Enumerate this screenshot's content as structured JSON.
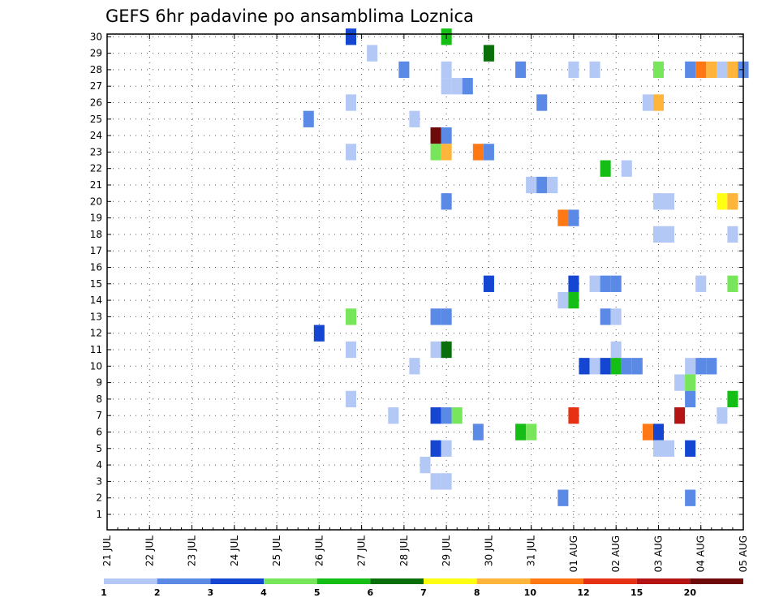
{
  "chart_data": {
    "type": "heatmap",
    "title": "GEFS 6hr padavine po ansamblima Loznica",
    "xlabel": "",
    "ylabel": "",
    "x_tick_labels": [
      "21 JUL",
      "22 JUL",
      "23 JUL",
      "24 JUL",
      "25 JUL",
      "26 JUL",
      "27 JUL",
      "28 JUL",
      "29 JUL",
      "30 JUL",
      "31 JUL",
      "01 AUG",
      "02 AUG",
      "03 AUG",
      "04 AUG",
      "05 AUG"
    ],
    "y_tick_labels": [
      "1",
      "2",
      "3",
      "4",
      "5",
      "6",
      "7",
      "8",
      "9",
      "10",
      "11",
      "12",
      "13",
      "14",
      "15",
      "16",
      "17",
      "18",
      "19",
      "20",
      "21",
      "22",
      "23",
      "24",
      "25",
      "26",
      "27",
      "28",
      "29",
      "30"
    ],
    "x_unit": "6-hour step from 21 JUL 00Z",
    "xlim": [
      0,
      60
    ],
    "ylim": [
      0.5,
      30.5
    ],
    "grid": true,
    "colorbar": {
      "labels": [
        "1",
        "2",
        "3",
        "4",
        "5",
        "6",
        "7",
        "8",
        "10",
        "12",
        "15",
        "20"
      ],
      "colors": [
        "#b4c8f5",
        "#5a8ae6",
        "#1446d2",
        "#78e65a",
        "#14be14",
        "#0a6e0a",
        "#ffff14",
        "#ffb43c",
        "#ff7814",
        "#e63214",
        "#b41414",
        "#6e0a0a"
      ]
    },
    "cells": [
      {
        "member": 30,
        "step": 23,
        "bin": 3
      },
      {
        "member": 30,
        "step": 32,
        "bin": 5
      },
      {
        "member": 29,
        "step": 25,
        "bin": 1
      },
      {
        "member": 29,
        "step": 36,
        "bin": 6
      },
      {
        "member": 28,
        "step": 28,
        "bin": 2
      },
      {
        "member": 28,
        "step": 32,
        "bin": 1
      },
      {
        "member": 28,
        "step": 39,
        "bin": 2
      },
      {
        "member": 28,
        "step": 44,
        "bin": 1
      },
      {
        "member": 28,
        "step": 46,
        "bin": 1
      },
      {
        "member": 28,
        "step": 52,
        "bin": 4
      },
      {
        "member": 28,
        "step": 55,
        "bin": 2
      },
      {
        "member": 28,
        "step": 56,
        "bin": 9
      },
      {
        "member": 28,
        "step": 57,
        "bin": 8
      },
      {
        "member": 28,
        "step": 58,
        "bin": 1
      },
      {
        "member": 28,
        "step": 59,
        "bin": 8
      },
      {
        "member": 28,
        "step": 60,
        "bin": 2
      },
      {
        "member": 27,
        "step": 32,
        "bin": 1
      },
      {
        "member": 27,
        "step": 33,
        "bin": 1
      },
      {
        "member": 27,
        "step": 34,
        "bin": 2
      },
      {
        "member": 26,
        "step": 23,
        "bin": 1
      },
      {
        "member": 26,
        "step": 41,
        "bin": 2
      },
      {
        "member": 26,
        "step": 51,
        "bin": 1
      },
      {
        "member": 26,
        "step": 52,
        "bin": 8
      },
      {
        "member": 25,
        "step": 19,
        "bin": 2
      },
      {
        "member": 25,
        "step": 29,
        "bin": 1
      },
      {
        "member": 24,
        "step": 31,
        "bin": 12
      },
      {
        "member": 24,
        "step": 32,
        "bin": 2
      },
      {
        "member": 23,
        "step": 23,
        "bin": 1
      },
      {
        "member": 23,
        "step": 31,
        "bin": 4
      },
      {
        "member": 23,
        "step": 32,
        "bin": 8
      },
      {
        "member": 23,
        "step": 35,
        "bin": 9
      },
      {
        "member": 23,
        "step": 36,
        "bin": 2
      },
      {
        "member": 22,
        "step": 47,
        "bin": 5
      },
      {
        "member": 22,
        "step": 49,
        "bin": 1
      },
      {
        "member": 21,
        "step": 40,
        "bin": 1
      },
      {
        "member": 21,
        "step": 41,
        "bin": 2
      },
      {
        "member": 21,
        "step": 42,
        "bin": 1
      },
      {
        "member": 20,
        "step": 32,
        "bin": 2
      },
      {
        "member": 20,
        "step": 52,
        "bin": 1
      },
      {
        "member": 20,
        "step": 53,
        "bin": 1
      },
      {
        "member": 20,
        "step": 58,
        "bin": 7
      },
      {
        "member": 20,
        "step": 59,
        "bin": 8
      },
      {
        "member": 19,
        "step": 43,
        "bin": 9
      },
      {
        "member": 19,
        "step": 44,
        "bin": 2
      },
      {
        "member": 18,
        "step": 52,
        "bin": 1
      },
      {
        "member": 18,
        "step": 53,
        "bin": 1
      },
      {
        "member": 18,
        "step": 59,
        "bin": 1
      },
      {
        "member": 15,
        "step": 36,
        "bin": 3
      },
      {
        "member": 15,
        "step": 44,
        "bin": 3
      },
      {
        "member": 15,
        "step": 46,
        "bin": 1
      },
      {
        "member": 15,
        "step": 47,
        "bin": 2
      },
      {
        "member": 15,
        "step": 48,
        "bin": 2
      },
      {
        "member": 15,
        "step": 56,
        "bin": 1
      },
      {
        "member": 15,
        "step": 59,
        "bin": 4
      },
      {
        "member": 14,
        "step": 43,
        "bin": 1
      },
      {
        "member": 14,
        "step": 44,
        "bin": 5
      },
      {
        "member": 13,
        "step": 23,
        "bin": 4
      },
      {
        "member": 13,
        "step": 31,
        "bin": 2
      },
      {
        "member": 13,
        "step": 32,
        "bin": 2
      },
      {
        "member": 13,
        "step": 47,
        "bin": 2
      },
      {
        "member": 13,
        "step": 48,
        "bin": 1
      },
      {
        "member": 12,
        "step": 20,
        "bin": 3
      },
      {
        "member": 11,
        "step": 23,
        "bin": 1
      },
      {
        "member": 11,
        "step": 31,
        "bin": 1
      },
      {
        "member": 11,
        "step": 32,
        "bin": 6
      },
      {
        "member": 11,
        "step": 48,
        "bin": 1
      },
      {
        "member": 10,
        "step": 29,
        "bin": 1
      },
      {
        "member": 10,
        "step": 45,
        "bin": 3
      },
      {
        "member": 10,
        "step": 46,
        "bin": 1
      },
      {
        "member": 10,
        "step": 47,
        "bin": 3
      },
      {
        "member": 10,
        "step": 48,
        "bin": 5
      },
      {
        "member": 10,
        "step": 49,
        "bin": 2
      },
      {
        "member": 10,
        "step": 50,
        "bin": 2
      },
      {
        "member": 10,
        "step": 55,
        "bin": 1
      },
      {
        "member": 10,
        "step": 56,
        "bin": 2
      },
      {
        "member": 10,
        "step": 57,
        "bin": 2
      },
      {
        "member": 9,
        "step": 54,
        "bin": 1
      },
      {
        "member": 9,
        "step": 55,
        "bin": 4
      },
      {
        "member": 8,
        "step": 23,
        "bin": 1
      },
      {
        "member": 8,
        "step": 55,
        "bin": 2
      },
      {
        "member": 8,
        "step": 59,
        "bin": 5
      },
      {
        "member": 7,
        "step": 27,
        "bin": 1
      },
      {
        "member": 7,
        "step": 31,
        "bin": 3
      },
      {
        "member": 7,
        "step": 32,
        "bin": 2
      },
      {
        "member": 7,
        "step": 33,
        "bin": 4
      },
      {
        "member": 7,
        "step": 44,
        "bin": 10
      },
      {
        "member": 7,
        "step": 54,
        "bin": 11
      },
      {
        "member": 7,
        "step": 58,
        "bin": 1
      },
      {
        "member": 6,
        "step": 35,
        "bin": 2
      },
      {
        "member": 6,
        "step": 39,
        "bin": 5
      },
      {
        "member": 6,
        "step": 40,
        "bin": 4
      },
      {
        "member": 6,
        "step": 51,
        "bin": 9
      },
      {
        "member": 6,
        "step": 52,
        "bin": 3
      },
      {
        "member": 5,
        "step": 31,
        "bin": 3
      },
      {
        "member": 5,
        "step": 32,
        "bin": 1
      },
      {
        "member": 5,
        "step": 52,
        "bin": 1
      },
      {
        "member": 5,
        "step": 53,
        "bin": 1
      },
      {
        "member": 5,
        "step": 55,
        "bin": 3
      },
      {
        "member": 4,
        "step": 30,
        "bin": 1
      },
      {
        "member": 3,
        "step": 31,
        "bin": 1
      },
      {
        "member": 3,
        "step": 32,
        "bin": 1
      },
      {
        "member": 2,
        "step": 43,
        "bin": 2
      },
      {
        "member": 2,
        "step": 55,
        "bin": 2
      }
    ]
  }
}
